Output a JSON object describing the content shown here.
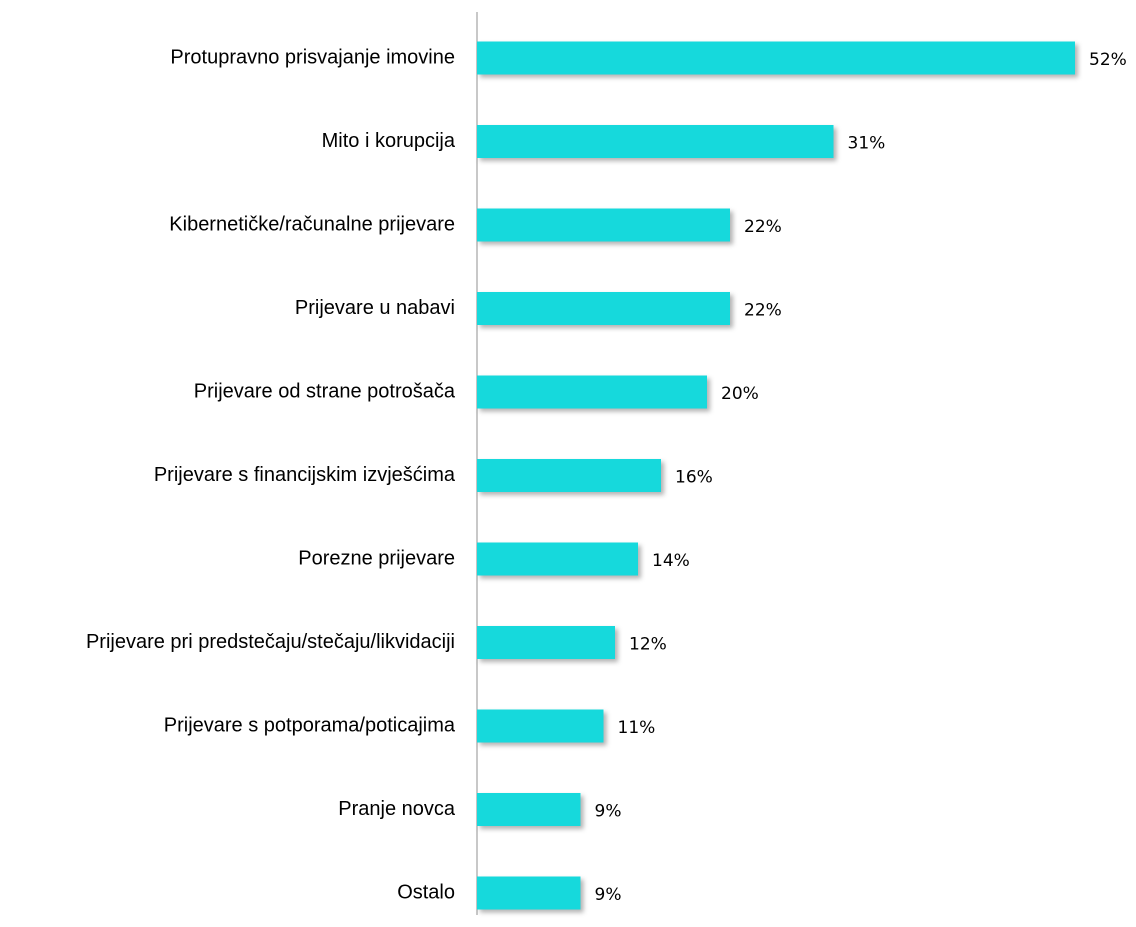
{
  "chart_data": {
    "type": "bar",
    "orientation": "horizontal",
    "categories": [
      "Protupravno prisvajanje imovine",
      "Mito i korupcija",
      "Kibernetičke/računalne prijevare",
      "Prijevare u nabavi",
      "Prijevare od strane potrošača",
      "Prijevare s financijskim izvješćima",
      "Porezne prijevare",
      "Prijevare pri predstečaju/stečaju/likvidaciji",
      "Prijevare s potporama/poticajima",
      "Pranje novca",
      "Ostalo"
    ],
    "values": [
      52,
      31,
      22,
      22,
      20,
      16,
      14,
      12,
      11,
      9,
      9
    ],
    "value_labels": [
      "52%",
      "31%",
      "22%",
      "22%",
      "20%",
      "16%",
      "14%",
      "12%",
      "11%",
      "9%",
      "9%"
    ],
    "color": "#14d9dc"
  }
}
